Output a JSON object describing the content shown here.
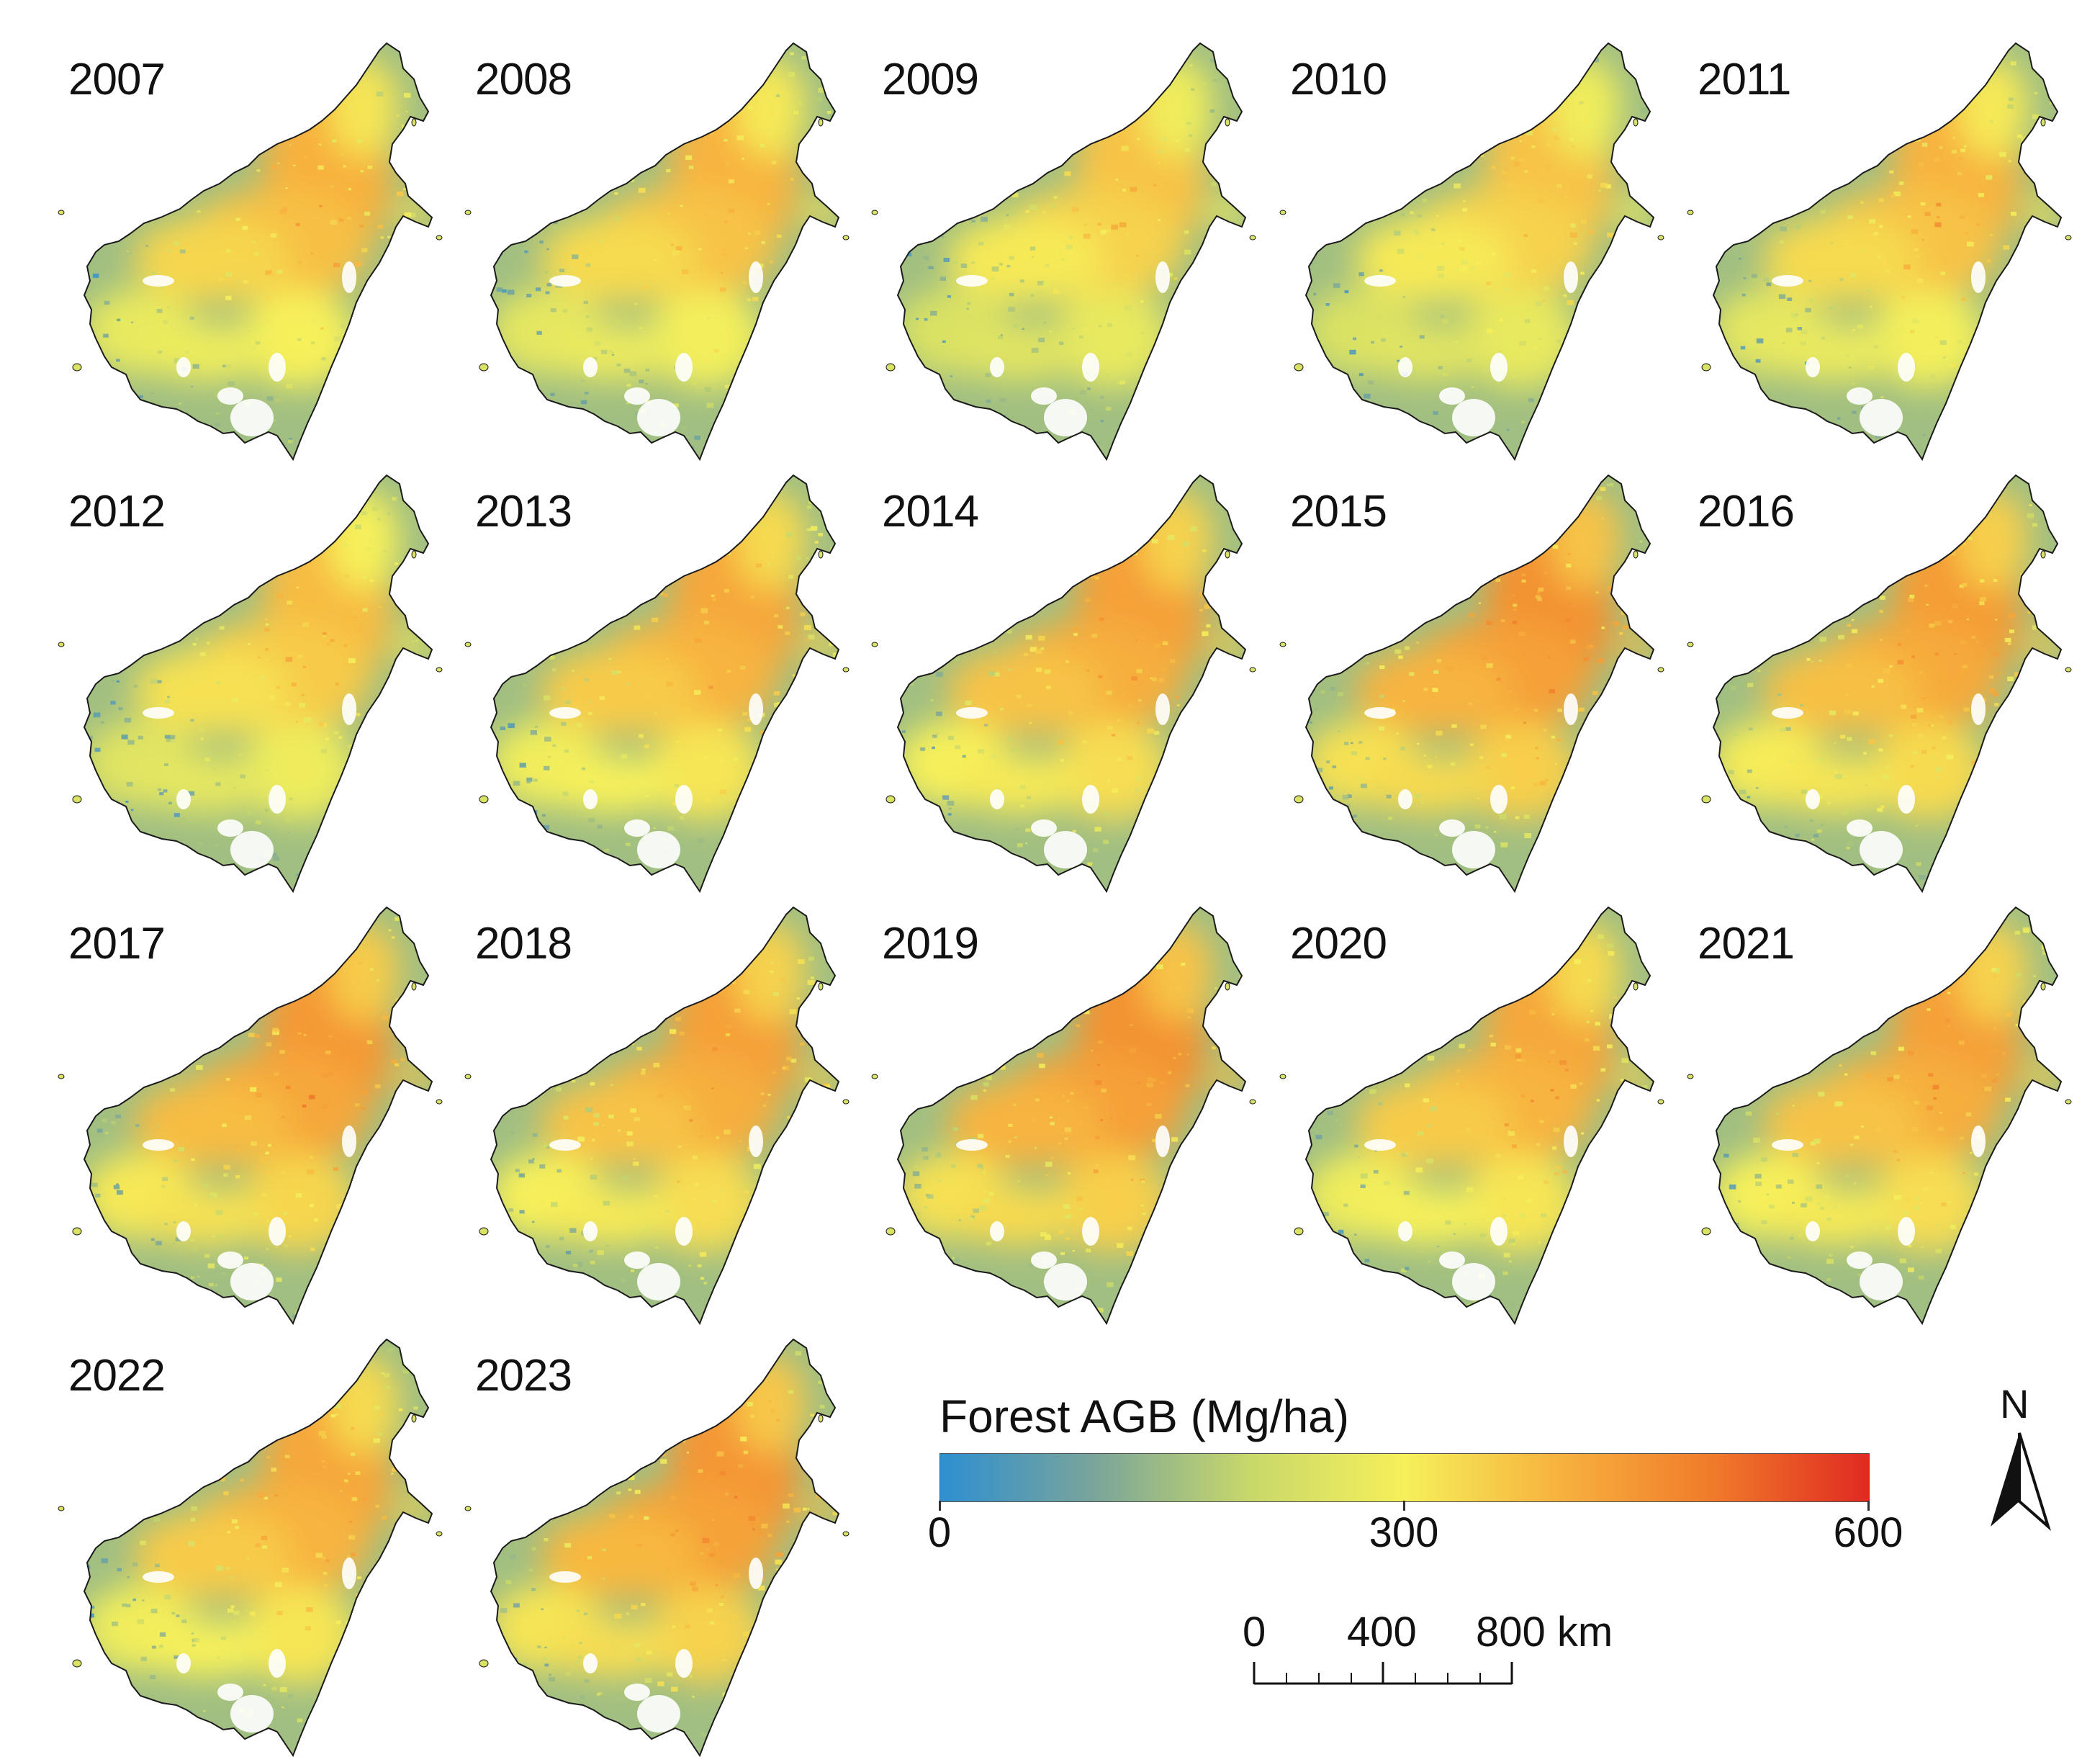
{
  "panels": [
    {
      "year": "2007",
      "mean": 0.55
    },
    {
      "year": "2008",
      "mean": 0.54
    },
    {
      "year": "2009",
      "mean": 0.5
    },
    {
      "year": "2010",
      "mean": 0.5
    },
    {
      "year": "2011",
      "mean": 0.54
    },
    {
      "year": "2012",
      "mean": 0.52
    },
    {
      "year": "2013",
      "mean": 0.58
    },
    {
      "year": "2014",
      "mean": 0.6
    },
    {
      "year": "2015",
      "mean": 0.64
    },
    {
      "year": "2016",
      "mean": 0.61
    },
    {
      "year": "2017",
      "mean": 0.62
    },
    {
      "year": "2018",
      "mean": 0.6
    },
    {
      "year": "2019",
      "mean": 0.64
    },
    {
      "year": "2020",
      "mean": 0.58
    },
    {
      "year": "2021",
      "mean": 0.6
    },
    {
      "year": "2022",
      "mean": 0.58
    },
    {
      "year": "2023",
      "mean": 0.63
    }
  ],
  "legend": {
    "title": "Forest AGB (Mg/ha)",
    "ticks": [
      {
        "value": 0,
        "label": "0"
      },
      {
        "value": 300,
        "label": "300"
      },
      {
        "value": 600,
        "label": "600"
      }
    ],
    "min": 0,
    "max": 600,
    "colors": [
      "#2e8fd1",
      "#7aa59a",
      "#c8d86a",
      "#f6f05a",
      "#f7b23e",
      "#f07a2a",
      "#e02a22"
    ]
  },
  "scale_bar": {
    "labels": [
      {
        "km": 0,
        "label": "0"
      },
      {
        "km": 400,
        "label": "400"
      },
      {
        "km": 800,
        "label": "800 km"
      }
    ]
  },
  "north_arrow": {
    "label": "N"
  },
  "map_colors": {
    "outline": "#1a1a1a",
    "water": "#ffffff"
  }
}
